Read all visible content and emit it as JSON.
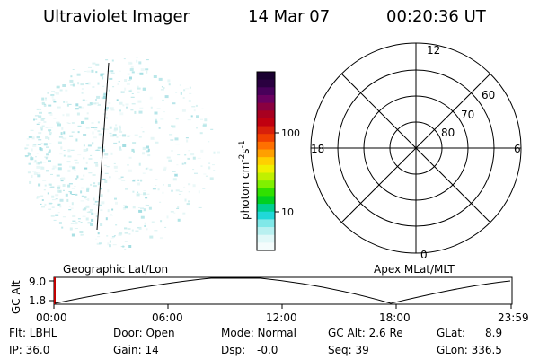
{
  "header": {
    "instrument": "Ultraviolet Imager",
    "date": "14 Mar 07",
    "time": "00:20:36 UT"
  },
  "colorbar": {
    "unit_label": "photon cm",
    "unit_exp1": "-2",
    "unit_mid": "s",
    "unit_exp2": "-1",
    "ticks": [
      "100",
      "10"
    ],
    "colors_top_to_bottom": [
      "#1a0030",
      "#2a0040",
      "#48005a",
      "#6a0060",
      "#8a0040",
      "#a80020",
      "#c00010",
      "#d8200a",
      "#f04000",
      "#ff7000",
      "#ffa000",
      "#ffd000",
      "#f0f000",
      "#c0f000",
      "#80f000",
      "#30e000",
      "#00d020",
      "#00d090",
      "#20d8d8",
      "#80e8e8",
      "#b8f0f0",
      "#e0f8f8",
      "#f4fcfc"
    ]
  },
  "polar_plot": {
    "mlt_labels": {
      "top": "12",
      "bottom": "0",
      "left": "18",
      "right": "6"
    },
    "lat_labels": [
      "60",
      "70",
      "80"
    ]
  },
  "timeline": {
    "y_label": "GC Alt",
    "y_ticks": [
      "9.0",
      "1.8"
    ],
    "left_title": "Geographic Lat/Lon",
    "right_title": "Apex MLat/MLT",
    "time_ticks": [
      "00:00",
      "06:00",
      "12:00",
      "18:00",
      "23:59"
    ]
  },
  "status": {
    "row1": [
      "Flt: LBHL",
      "Door: Open",
      "Mode: Normal",
      "GC Alt: 2.6 Re",
      "GLat:",
      "8.9"
    ],
    "row2": [
      "IP: 36.0",
      "Gain: 14",
      "Dsp:",
      "-0.0",
      "Seq: 39",
      "GLon: 336.5"
    ]
  }
}
